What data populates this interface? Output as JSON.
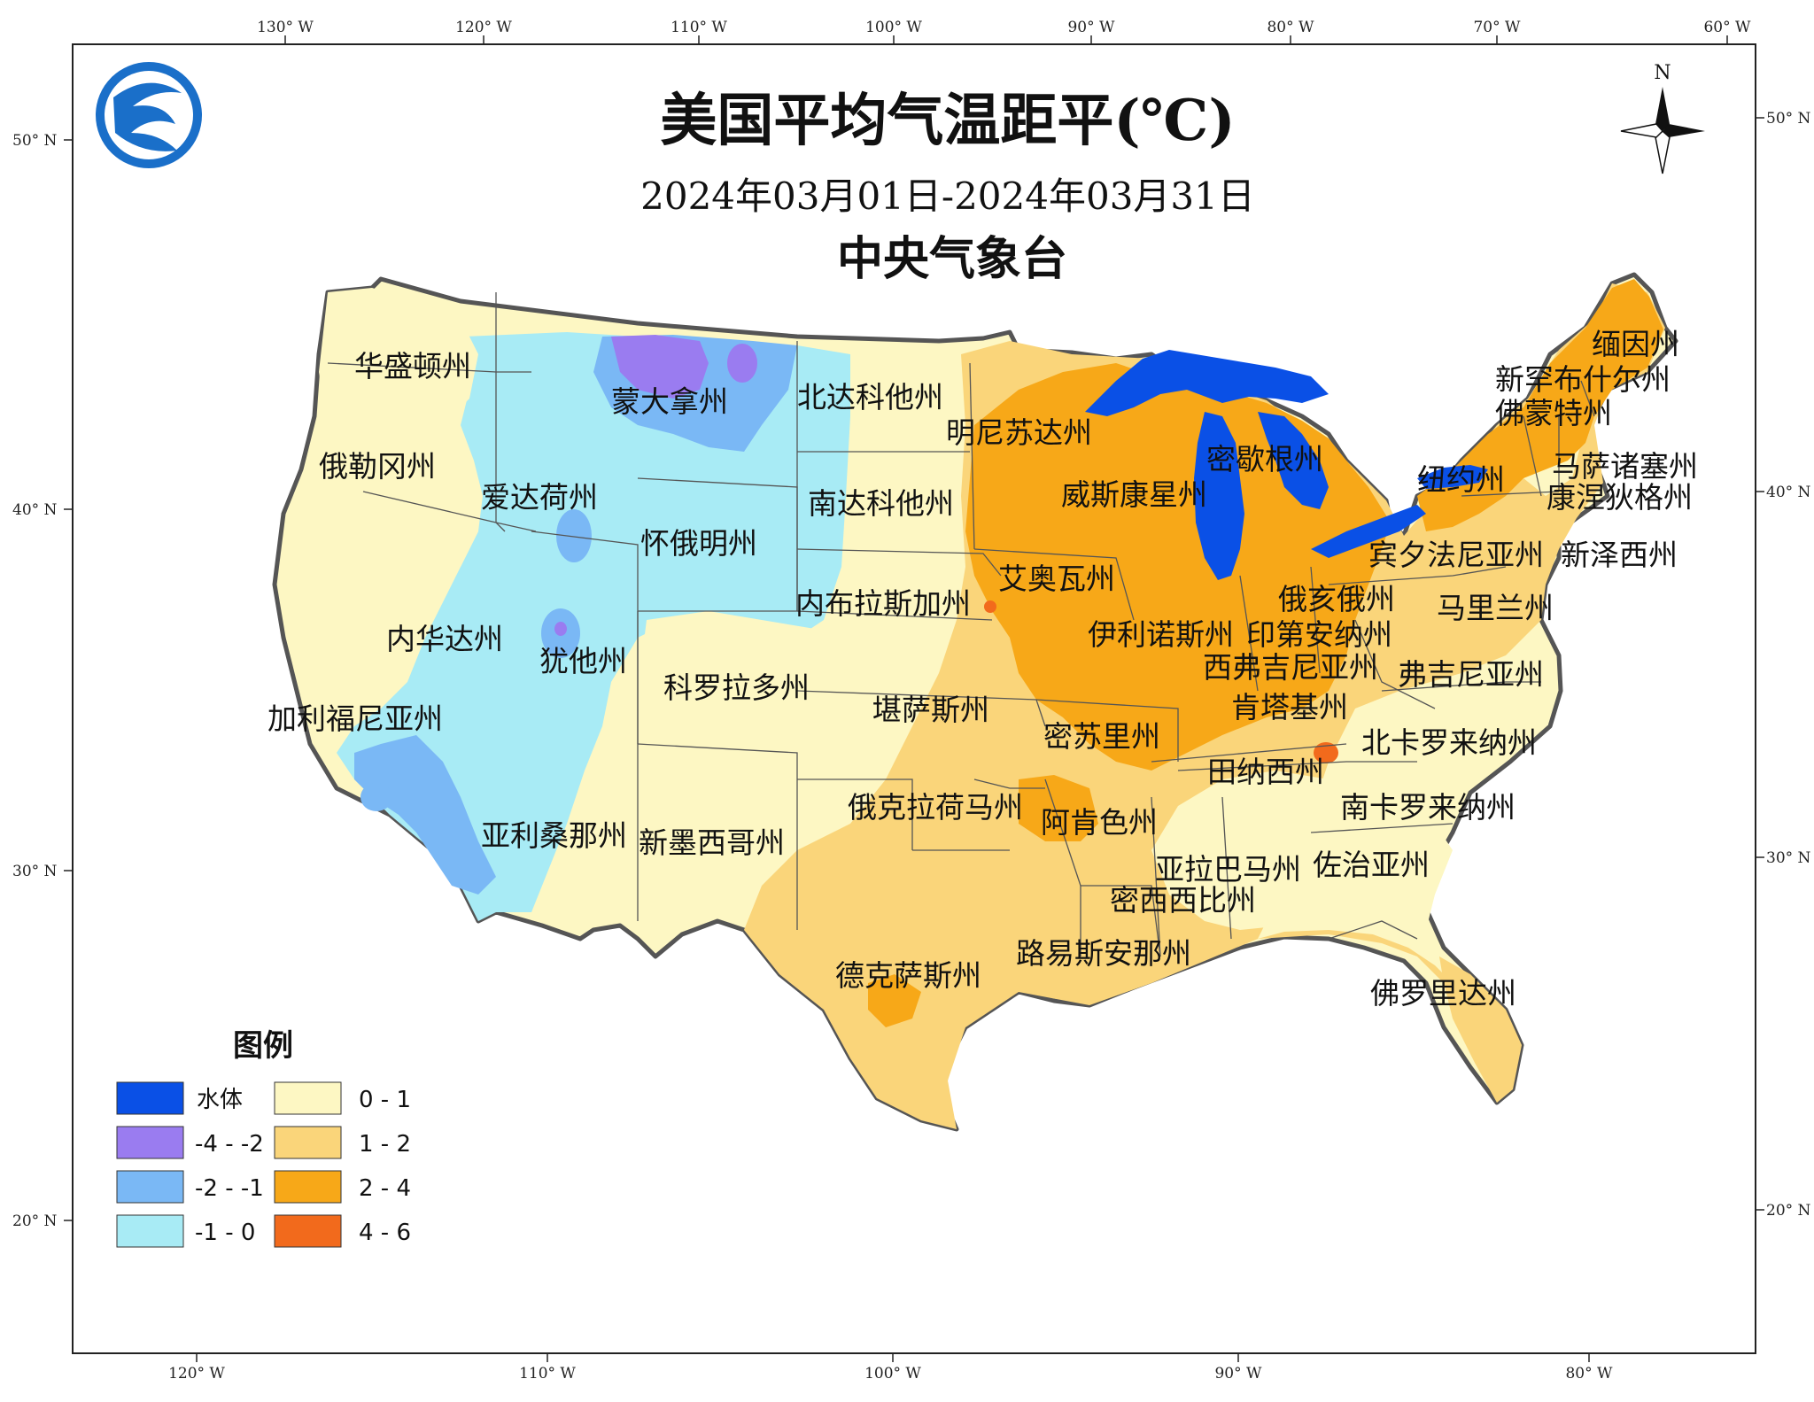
{
  "title": "美国平均气温距平(℃)",
  "subtitle": "2024年03月01日-2024年03月31日",
  "agency": "中央气象台",
  "compass": {
    "north_label": "N"
  },
  "logo": {
    "icon": "cma-logo-icon"
  },
  "ticks": {
    "top": [
      "130° W",
      "120° W",
      "110° W",
      "100° W",
      "90° W",
      "80° W",
      "70° W",
      "60° W"
    ],
    "bottom": [
      "120° W",
      "110° W",
      "100° W",
      "90° W",
      "80° W"
    ],
    "left": [
      "50° N",
      "40° N",
      "30° N",
      "20° N"
    ],
    "right": [
      "50° N",
      "40° N",
      "30° N",
      "20° N"
    ]
  },
  "legend": {
    "title": "图例",
    "items": [
      {
        "label": "水体",
        "color": "#0a50e6"
      },
      {
        "label": "-4 - -2",
        "color": "#9a7cf0"
      },
      {
        "label": "-2 - -1",
        "color": "#7ab8f5"
      },
      {
        "label": "-1 - 0",
        "color": "#a8ebf5"
      },
      {
        "label": "0 - 1",
        "color": "#fdf7c3"
      },
      {
        "label": "1 - 2",
        "color": "#fad57a"
      },
      {
        "label": "2 - 4",
        "color": "#f7a818"
      },
      {
        "label": "4 - 6",
        "color": "#f26a1c"
      }
    ]
  },
  "states": [
    "华盛顿州",
    "蒙大拿州",
    "北达科他州",
    "明尼苏达州",
    "缅因州",
    "新罕布什尔州",
    "佛蒙特州",
    "俄勒冈州",
    "爱达荷州",
    "南达科他州",
    "威斯康星州",
    "密歇根州",
    "纽约州",
    "马萨诸塞州",
    "康涅狄格州",
    "怀俄明州",
    "宾夕法尼亚州",
    "新泽西州",
    "艾奥瓦州",
    "俄亥俄州",
    "内布拉斯加州",
    "马里兰州",
    "伊利诺斯州",
    "印第安纳州",
    "内华达州",
    "犹他州",
    "西弗吉尼亚州",
    "弗吉尼亚州",
    "科罗拉多州",
    "肯塔基州",
    "加利福尼亚州",
    "堪萨斯州",
    "密苏里州",
    "北卡罗来纳州",
    "田纳西州",
    "俄克拉荷马州",
    "阿肯色州",
    "南卡罗来纳州",
    "亚利桑那州",
    "新墨西哥州",
    "亚拉巴马州",
    "佐治亚州",
    "密西西比州",
    "路易斯安那州",
    "德克萨斯州",
    "佛罗里达州"
  ]
}
